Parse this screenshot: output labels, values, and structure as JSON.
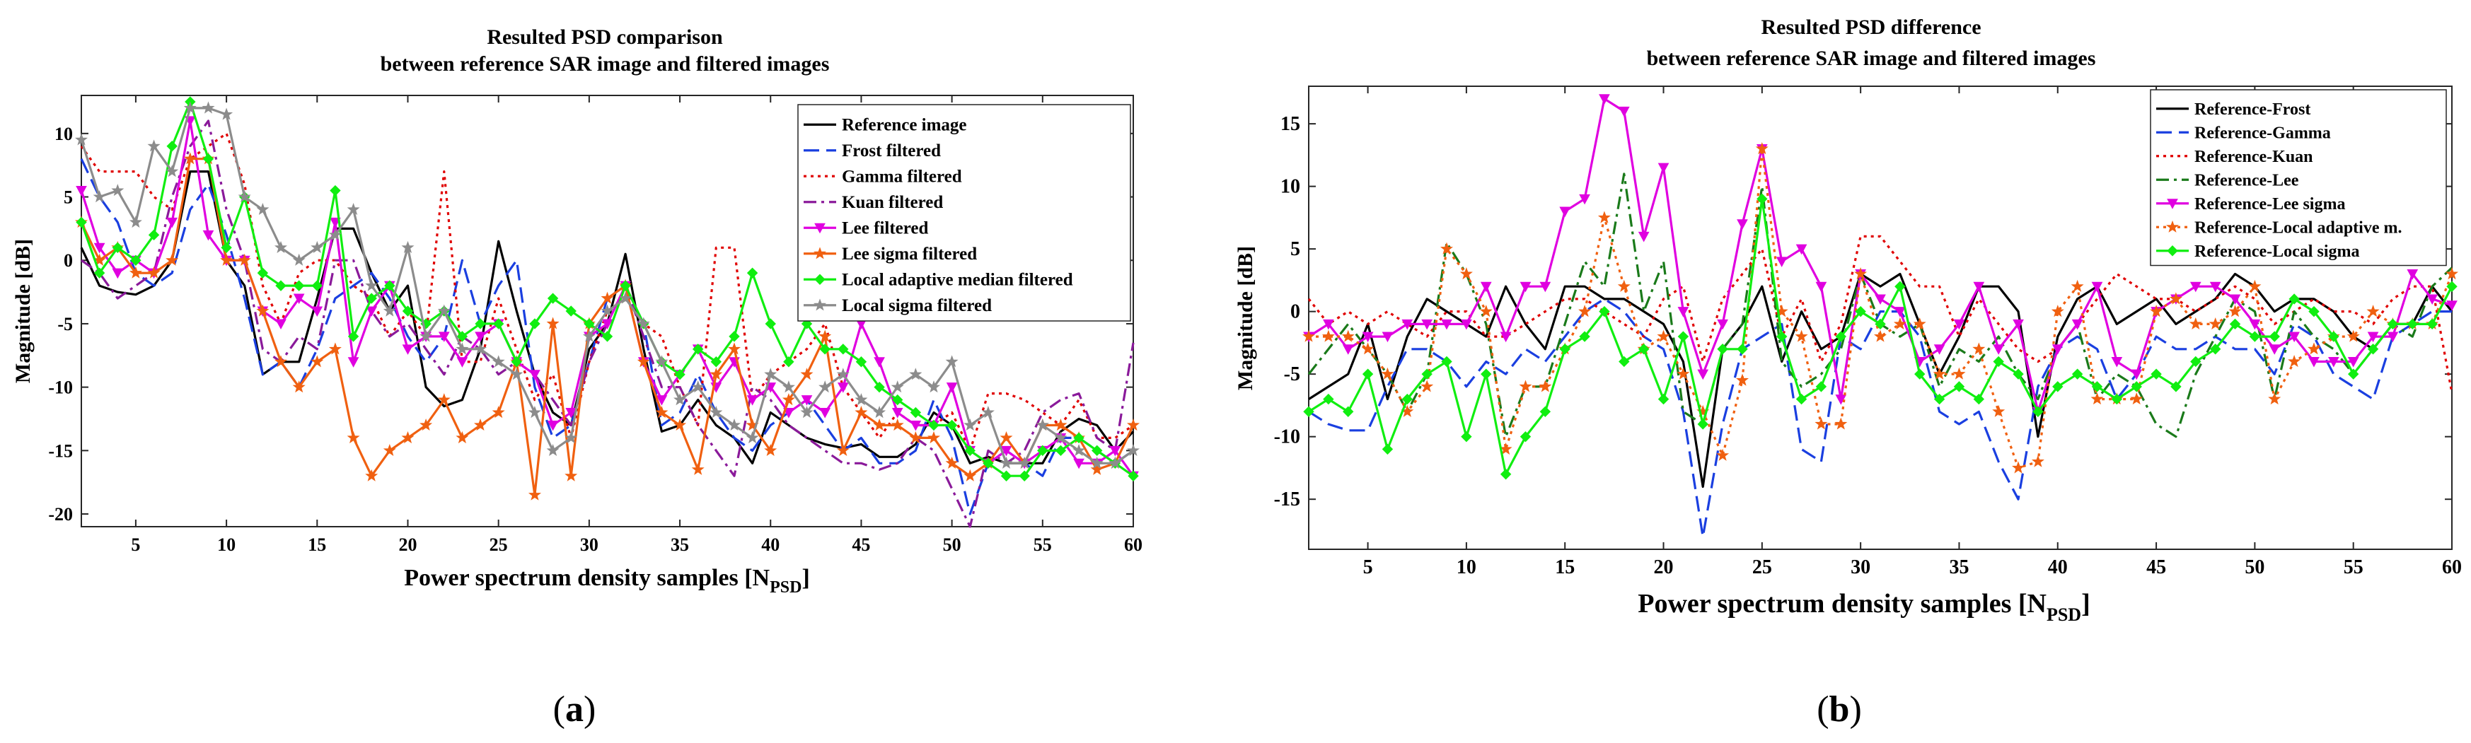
{
  "chart_data": [
    {
      "type": "line",
      "panel_label": "a",
      "title": "Resulted PSD comparison",
      "subtitle": "between reference SAR image and filtered images",
      "xlabel": "Power spectrum density samples [N",
      "xlabel_sub": "PSD",
      "xlabel_end": "]",
      "ylabel": "Magnitude [dB]",
      "xlim": [
        2,
        60
      ],
      "ylim": [
        -21,
        13
      ],
      "xticks": [
        5,
        10,
        15,
        20,
        25,
        30,
        35,
        40,
        45,
        50,
        55,
        60
      ],
      "yticks": [
        10,
        5,
        0,
        -5,
        -10,
        -15,
        -20
      ],
      "legend_position": "top-right",
      "x": [
        2,
        3,
        4,
        5,
        6,
        7,
        8,
        9,
        10,
        11,
        12,
        13,
        14,
        15,
        16,
        17,
        18,
        19,
        20,
        21,
        22,
        23,
        24,
        25,
        26,
        27,
        28,
        29,
        30,
        31,
        32,
        33,
        34,
        35,
        36,
        37,
        38,
        39,
        40,
        41,
        42,
        43,
        44,
        45,
        46,
        47,
        48,
        49,
        50,
        51,
        52,
        53,
        54,
        55,
        56,
        57,
        58,
        59,
        60
      ],
      "series": [
        {
          "name": "Reference image",
          "color": "#000000",
          "dash": "solid",
          "marker": "none",
          "values": [
            1,
            -2,
            -2.5,
            -2.7,
            -2,
            0,
            7,
            7,
            0,
            -2,
            -9,
            -8,
            -8,
            -3,
            2.5,
            2.5,
            -1,
            -4,
            -2,
            -10,
            -11.5,
            -11,
            -7,
            1.5,
            -4,
            -9,
            -12,
            -13,
            -7,
            -5,
            0.5,
            -7,
            -13.5,
            -13,
            -11,
            -13,
            -14,
            -16,
            -12,
            -13,
            -14,
            -14.5,
            -14.8,
            -14.5,
            -15.5,
            -15.5,
            -14.5,
            -12,
            -13,
            -16,
            -15.5,
            -16,
            -16,
            -16,
            -13.5,
            -12.5,
            -13,
            -15,
            -13.5
          ]
        },
        {
          "name": "Frost filtered",
          "color": "#1a3fe0",
          "dash": "long",
          "marker": "none",
          "values": [
            8,
            5,
            3,
            -1,
            -2,
            -1,
            4,
            6,
            2,
            -3,
            -9,
            -8,
            -10,
            -7,
            -3,
            -2,
            -1,
            -3,
            -6,
            -8,
            -6,
            0,
            -5,
            -2,
            0,
            -10,
            -14,
            -13,
            -8,
            -3,
            -2,
            -5,
            -13,
            -12,
            -9,
            -12,
            -14,
            -15,
            -13,
            -12,
            -11,
            -13,
            -15,
            -14,
            -16,
            -16,
            -15,
            -11,
            -14,
            -20,
            -16,
            -15,
            -16,
            -17,
            -14,
            -14,
            -15,
            -16,
            -15
          ]
        },
        {
          "name": "Gamma filtered",
          "color": "#e00000",
          "dash": "dot",
          "marker": "none",
          "values": [
            9,
            7,
            7,
            7,
            5,
            4,
            8,
            9,
            10,
            6,
            -2,
            -5,
            -1,
            0,
            0,
            -2,
            -3,
            -6,
            -4,
            -6,
            7,
            -8,
            -8,
            -3,
            -7,
            -11,
            -9,
            -14,
            -8,
            -4,
            -3,
            -5,
            -6,
            -10,
            -13,
            1,
            1,
            -11,
            -9,
            -8,
            -7,
            -5,
            -10,
            -12,
            -14,
            -12,
            -13,
            -13,
            -12,
            -15,
            -10.5,
            -10.5,
            -11,
            -12,
            -13,
            -11,
            -14,
            -14,
            -13
          ]
        },
        {
          "name": "Kuan filtered",
          "color": "#8a1a9a",
          "dash": "dashdot",
          "marker": "none",
          "values": [
            0,
            -1,
            -3,
            -2,
            -1,
            5,
            9,
            11,
            4,
            0,
            -7,
            -8,
            -6,
            -7,
            0,
            0,
            -4,
            -6,
            -5,
            -7,
            -9,
            -6,
            -7,
            -9,
            -8,
            -9,
            -11,
            -13,
            -8,
            -5,
            -2,
            -6,
            -10,
            -10,
            -13,
            -15,
            -17,
            -10,
            -11,
            -13,
            -14,
            -15,
            -16,
            -16,
            -16.5,
            -16,
            -14,
            -15,
            -18,
            -21,
            -15,
            -16,
            -15,
            -12,
            -11,
            -10.5,
            -14,
            -15,
            -6.5
          ]
        },
        {
          "name": "Lee filtered",
          "color": "#e000e0",
          "dash": "solid",
          "marker": "triangle",
          "values": [
            5.5,
            1,
            -1,
            0,
            -1,
            3,
            11,
            2,
            0,
            0,
            -4,
            -5,
            -3,
            -4,
            3,
            -8,
            -4,
            -2,
            -7,
            -6,
            -6,
            -8,
            -6,
            -5,
            -8,
            -9,
            -13,
            -12,
            -6,
            -5,
            -2,
            -8,
            -11,
            -9,
            -7,
            -10,
            -8,
            -11,
            -10,
            -12,
            -11,
            -12,
            -10,
            -5,
            -8,
            -12,
            -13,
            -13,
            -10,
            -15,
            -16,
            -15,
            -16,
            -15,
            -14,
            -16,
            -16,
            -15,
            -17
          ]
        },
        {
          "name": "Lee sigma filtered",
          "color": "#f06010",
          "dash": "solid",
          "marker": "star",
          "values": [
            3,
            0,
            1,
            -1,
            -1,
            0,
            8,
            8,
            0,
            0,
            -4,
            -8,
            -10,
            -8,
            -7,
            -14,
            -17,
            -15,
            -14,
            -13,
            -11,
            -14,
            -13,
            -12,
            -8,
            -18.5,
            -5,
            -17,
            -5,
            -3,
            -2,
            -8,
            -12,
            -13,
            -16.5,
            -9,
            -7,
            -13,
            -15,
            -11,
            -9,
            -6,
            -15,
            -12,
            -13,
            -13,
            -14,
            -14,
            -16,
            -17,
            -16,
            -14,
            -16,
            -13,
            -13,
            -14,
            -16.5,
            -16,
            -13
          ]
        },
        {
          "name": "Local adaptive median filtered",
          "color": "#10ee10",
          "dash": "solid",
          "marker": "diamond",
          "values": [
            3,
            -1,
            1,
            0,
            2,
            9,
            12.5,
            8,
            1,
            5,
            -1,
            -2,
            -2,
            -2,
            5.5,
            -6,
            -3,
            -2,
            -4,
            -5,
            -4,
            -6,
            -5,
            -5,
            -8,
            -5,
            -3,
            -4,
            -5,
            -6,
            -2,
            -5,
            -8,
            -9,
            -7,
            -8,
            -6,
            -1,
            -5,
            -8,
            -5,
            -7,
            -7,
            -8,
            -10,
            -11,
            -12,
            -13,
            -13,
            -15,
            -16,
            -17,
            -17,
            -15,
            -15,
            -14,
            -15,
            -16,
            -17
          ]
        },
        {
          "name": "Local sigma filtered",
          "color": "#8c8c8c",
          "dash": "solid",
          "marker": "star",
          "values": [
            9.5,
            5,
            5.5,
            3,
            9,
            7,
            12,
            12,
            11.5,
            5,
            4,
            1,
            0,
            1,
            2,
            4,
            -2,
            -4,
            1,
            -6,
            -4,
            -7,
            -7,
            -8,
            -9,
            -12,
            -15,
            -14,
            -6,
            -4,
            -3,
            -5,
            -8,
            -11,
            -10,
            -12,
            -13,
            -14,
            -9,
            -10,
            -12,
            -10,
            -9,
            -11,
            -12,
            -10,
            -9,
            -10,
            -8,
            -13,
            -12,
            -16,
            -16,
            -13,
            -14,
            -15,
            -16,
            -16,
            -15
          ]
        }
      ]
    },
    {
      "type": "line",
      "panel_label": "b",
      "title": "Resulted PSD difference",
      "subtitle": "between reference SAR image and filtered images",
      "xlabel": "Power spectrum density samples [N",
      "xlabel_sub": "PSD",
      "xlabel_end": "]",
      "ylabel": "Magnitude [dB]",
      "xlim": [
        2,
        60
      ],
      "ylim": [
        -19,
        18
      ],
      "xticks": [
        5,
        10,
        15,
        20,
        25,
        30,
        35,
        40,
        45,
        50,
        55,
        60
      ],
      "yticks": [
        15,
        10,
        5,
        0,
        -5,
        -10,
        -15
      ],
      "legend_position": "top-right",
      "x": [
        2,
        3,
        4,
        5,
        6,
        7,
        8,
        9,
        10,
        11,
        12,
        13,
        14,
        15,
        16,
        17,
        18,
        19,
        20,
        21,
        22,
        23,
        24,
        25,
        26,
        27,
        28,
        29,
        30,
        31,
        32,
        33,
        34,
        35,
        36,
        37,
        38,
        39,
        40,
        41,
        42,
        43,
        44,
        45,
        46,
        47,
        48,
        49,
        50,
        51,
        52,
        53,
        54,
        55,
        56,
        57,
        58,
        59,
        60
      ],
      "series": [
        {
          "name": "Reference-Frost",
          "color": "#000000",
          "dash": "solid",
          "marker": "none",
          "values": [
            -7,
            -6,
            -5,
            -1,
            -7,
            -2,
            1,
            0,
            -1,
            -2,
            2,
            -1,
            -3,
            2,
            2,
            1,
            1,
            0,
            -1,
            -4,
            -14,
            -3,
            -1,
            2,
            -4,
            0,
            -3,
            -2,
            3,
            2,
            3,
            -1,
            -5,
            -2,
            2,
            2,
            0,
            -10,
            -2,
            1,
            2,
            -1,
            0,
            1,
            -1,
            0,
            1,
            3,
            2,
            0,
            1,
            1,
            0,
            -2,
            -3,
            -1,
            -1,
            2,
            0
          ]
        },
        {
          "name": "Reference-Gamma",
          "color": "#1a3fe0",
          "dash": "long",
          "marker": "none",
          "values": [
            -8,
            -9,
            -9.5,
            -9.5,
            -6,
            -3,
            -3,
            -4,
            -6,
            -4,
            -5,
            -3,
            -4,
            -2,
            0,
            1,
            0,
            -2,
            -3,
            -8,
            -18,
            -9,
            -3,
            -2,
            -1,
            -11,
            -12,
            -2,
            -3,
            0,
            0,
            -2,
            -8,
            -9,
            -8,
            -12,
            -15,
            -6,
            -3,
            -2,
            -3,
            -7,
            -5,
            -2,
            -3,
            -3,
            -2,
            -3,
            -3,
            -5,
            -1,
            -2,
            -5,
            -6,
            -7,
            -2,
            -1,
            0,
            0
          ]
        },
        {
          "name": "Reference-Kuan",
          "color": "#e00000",
          "dash": "dot",
          "marker": "none",
          "values": [
            1,
            -1,
            0,
            -1,
            0,
            -1,
            -2,
            0,
            0,
            -2,
            -2,
            -1,
            0,
            1,
            1,
            0,
            -1,
            -2,
            1,
            2,
            -4,
            1,
            3,
            5,
            -2,
            1,
            -4,
            -1,
            6,
            6,
            4,
            2,
            2,
            -2,
            1,
            -1,
            -3,
            -4,
            -3,
            -1,
            1,
            3,
            2,
            1,
            1,
            0,
            1,
            2,
            1,
            -1,
            0,
            1,
            0,
            0,
            -1,
            1,
            2,
            2,
            -6.5
          ]
        },
        {
          "name": "Reference-Lee",
          "color": "#1a7a1a",
          "dash": "dashdot",
          "marker": "none",
          "values": [
            -5,
            -3,
            -1,
            -3,
            -5,
            -8,
            -5,
            5.5,
            3,
            -1,
            -10,
            -6,
            -6,
            -1,
            4,
            2,
            11,
            0,
            4,
            -8,
            -9,
            -3,
            -1,
            10,
            -4,
            -6,
            -5,
            -3,
            3,
            -1,
            -2,
            -1,
            -6,
            -3,
            -4,
            -2,
            -5,
            -7,
            -3,
            -1,
            -7,
            -5,
            -6,
            -9,
            -10,
            -5,
            -2,
            1,
            0,
            -7,
            0,
            -2,
            -3,
            -5,
            -3,
            -1,
            -2,
            2,
            3.5
          ]
        },
        {
          "name": "Reference-Lee sigma",
          "color": "#e000e0",
          "dash": "solid",
          "marker": "triangle",
          "values": [
            -2,
            -1,
            -3,
            -2,
            -2,
            -1,
            -1,
            -1,
            -1,
            2,
            -2,
            2,
            2,
            8,
            9,
            17,
            16,
            6,
            11.5,
            0,
            -5,
            -1,
            7,
            13,
            4,
            5,
            2,
            -7,
            3,
            1,
            0,
            -4,
            -3,
            -1,
            2,
            -3,
            -1,
            -8,
            -3,
            -1,
            2,
            -4,
            -5,
            0,
            1,
            2,
            2,
            1,
            -1,
            -3,
            -2,
            -4,
            -4,
            -4,
            -2,
            -2,
            3,
            1,
            0.5
          ]
        },
        {
          "name": "Reference-Local adaptive m.",
          "color": "#f06010",
          "dash": "dot",
          "marker": "star",
          "values": [
            -2,
            -2,
            -2,
            -3,
            -5,
            -8,
            -6,
            5,
            3,
            0,
            -11,
            -6,
            -6,
            -3,
            0,
            7.5,
            2,
            -3,
            -2,
            -5,
            -8,
            -11.5,
            -5.5,
            13,
            0,
            -2,
            -9,
            -9,
            3,
            -2,
            -1,
            -1,
            -5,
            -5,
            -3,
            -8,
            -12.5,
            -12,
            0,
            2,
            -7,
            -7,
            -7,
            0,
            1,
            -1,
            -1,
            0,
            2,
            -7,
            -4,
            -3,
            -2,
            -2,
            0,
            -1,
            -1,
            -1,
            3
          ]
        },
        {
          "name": "Reference-Local sigma",
          "color": "#10ee10",
          "dash": "solid",
          "marker": "diamond",
          "values": [
            -8,
            -7,
            -8,
            -5,
            -11,
            -7,
            -5,
            -4,
            -10,
            -5,
            -13,
            -10,
            -8,
            -3,
            -2,
            0,
            -4,
            -3,
            -7,
            -2,
            -9,
            -3,
            -3,
            9,
            -2,
            -7,
            -6,
            -2,
            0,
            -1,
            2,
            -5,
            -7,
            -6,
            -7,
            -4,
            -5,
            -8,
            -6,
            -5,
            -6,
            -7,
            -6,
            -5,
            -6,
            -4,
            -3,
            -1,
            -2,
            -2,
            1,
            0,
            -2,
            -5,
            -3,
            -1,
            -1,
            -1,
            2
          ]
        }
      ]
    }
  ]
}
